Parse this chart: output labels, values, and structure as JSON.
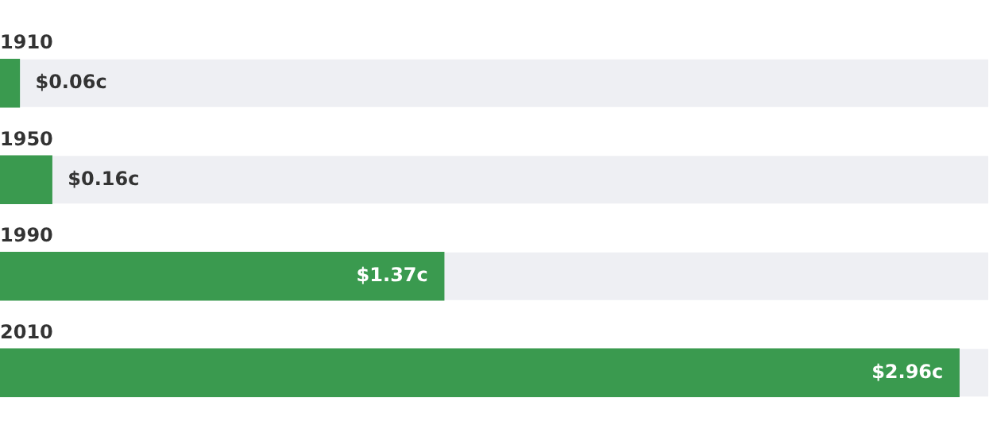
{
  "chart_data": {
    "type": "bar",
    "orientation": "horizontal",
    "categories": [
      "1910",
      "1950",
      "1990",
      "2010"
    ],
    "values": [
      0.06,
      0.16,
      1.37,
      2.96
    ],
    "color": "#3a9a4f",
    "value_labels": [
      "$0.06c",
      "$0.16c",
      "$1.37c",
      "$2.96c"
    ],
    "xlim": [
      0,
      3.05
    ]
  }
}
